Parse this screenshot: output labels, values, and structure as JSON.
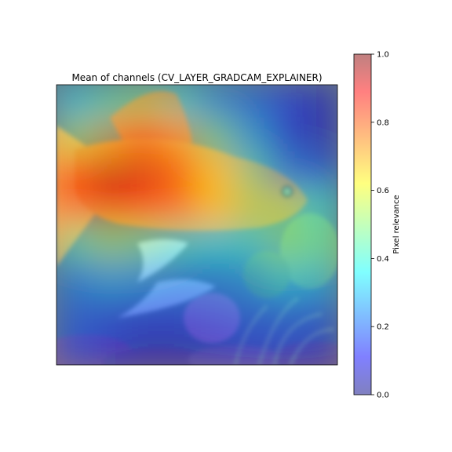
{
  "chart_data": {
    "type": "heatmap",
    "title": "Mean of channels (CV_LAYER_GRADCAM_EXPLAINER)",
    "colorbar": {
      "label": "Pixel relevance",
      "range": [
        0.0,
        1.0
      ],
      "ticks": [
        "0.0",
        "0.2",
        "0.4",
        "0.6",
        "0.8",
        "1.0"
      ],
      "colormap": "jet",
      "alpha": 0.5
    },
    "image_axes_ticks": "off",
    "relevance_grid": [
      [
        0.35,
        0.45,
        0.5,
        0.4,
        0.28,
        0.22,
        0.15,
        0.08
      ],
      [
        0.55,
        0.7,
        0.78,
        0.7,
        0.5,
        0.3,
        0.15,
        0.08
      ],
      [
        0.85,
        0.95,
        0.92,
        0.82,
        0.65,
        0.45,
        0.25,
        0.18
      ],
      [
        0.8,
        0.9,
        0.88,
        0.78,
        0.65,
        0.52,
        0.5,
        0.4
      ],
      [
        0.45,
        0.55,
        0.5,
        0.42,
        0.38,
        0.4,
        0.5,
        0.45
      ],
      [
        0.25,
        0.3,
        0.28,
        0.25,
        0.25,
        0.28,
        0.35,
        0.32
      ],
      [
        0.2,
        0.18,
        0.15,
        0.15,
        0.18,
        0.2,
        0.22,
        0.2
      ],
      [
        0.18,
        0.12,
        0.08,
        0.08,
        0.1,
        0.12,
        0.12,
        0.1
      ]
    ]
  }
}
